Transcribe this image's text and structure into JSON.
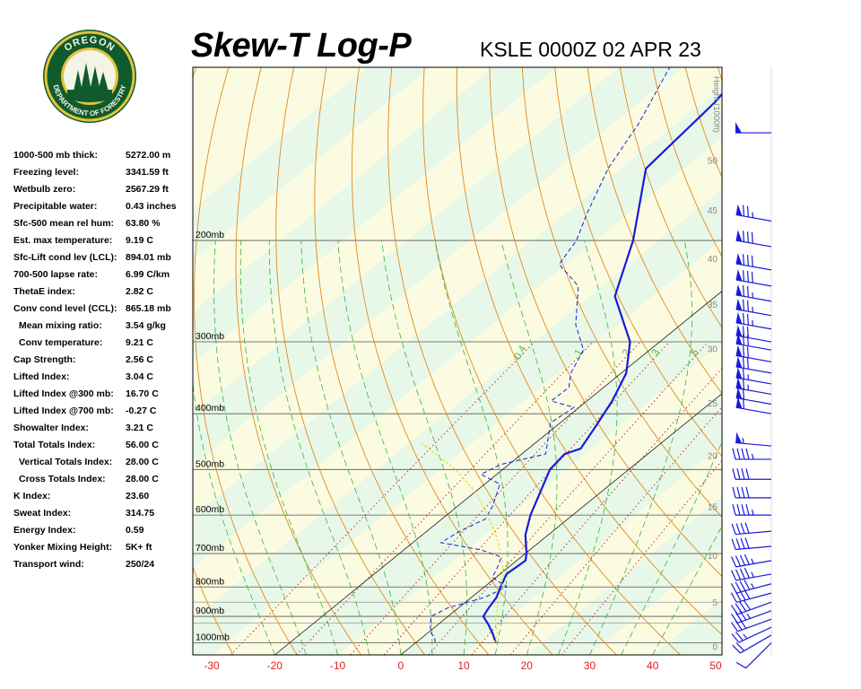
{
  "header": {
    "title": "Skew-T Log-P",
    "station": "KSLE 0000Z 02 APR 23"
  },
  "logo": {
    "top_text": "OREGON",
    "bottom_text": "DEPARTMENT OF FORESTRY"
  },
  "indices": [
    {
      "label": "1000-500 mb thick:",
      "value": "5272.00 m",
      "indent": false
    },
    {
      "label": "Freezing level:",
      "value": "3341.59 ft",
      "indent": false
    },
    {
      "label": "Wetbulb zero:",
      "value": "2567.29 ft",
      "indent": false
    },
    {
      "label": "Precipitable water:",
      "value": "0.43 inches",
      "indent": false
    },
    {
      "label": "Sfc-500 mean rel hum:",
      "value": "63.80 %",
      "indent": false
    },
    {
      "label": "Est. max temperature:",
      "value": "9.19 C",
      "indent": false
    },
    {
      "label": "Sfc-Lift cond lev (LCL):",
      "value": "894.01 mb",
      "indent": false
    },
    {
      "label": "700-500 lapse rate:",
      "value": "6.99 C/km",
      "indent": false
    },
    {
      "label": "ThetaE index:",
      "value": "2.82 C",
      "indent": false
    },
    {
      "label": "Conv cond level (CCL):",
      "value": "865.18 mb",
      "indent": false
    },
    {
      "label": "Mean mixing ratio:",
      "value": "3.54 g/kg",
      "indent": true
    },
    {
      "label": "Conv temperature:",
      "value": "9.21 C",
      "indent": true
    },
    {
      "label": "Cap Strength:",
      "value": "2.56 C",
      "indent": false
    },
    {
      "label": "Lifted Index:",
      "value": "3.04 C",
      "indent": false
    },
    {
      "label": "Lifted Index @300 mb:",
      "value": "16.70 C",
      "indent": false
    },
    {
      "label": "Lifted Index @700 mb:",
      "value": "-0.27 C",
      "indent": false
    },
    {
      "label": "Showalter Index:",
      "value": "3.21 C",
      "indent": false
    },
    {
      "label": "Total Totals Index:",
      "value": "56.00 C",
      "indent": false
    },
    {
      "label": "Vertical Totals Index:",
      "value": "28.00 C",
      "indent": true
    },
    {
      "label": "Cross Totals Index:",
      "value": "28.00 C",
      "indent": true
    },
    {
      "label": "K Index:",
      "value": "23.60",
      "indent": false
    },
    {
      "label": "Sweat Index:",
      "value": "314.75",
      "indent": false
    },
    {
      "label": "Energy Index:",
      "value": "0.59",
      "indent": false
    },
    {
      "label": "Yonker Mixing Height:",
      "value": "5K+ ft",
      "indent": false
    },
    {
      "label": "Transport wind:",
      "value": "250/24",
      "indent": false
    }
  ],
  "chart_data": {
    "type": "line",
    "title": "Skew-T Log-P",
    "xlabel": "",
    "ylabel": "",
    "xlim": [
      -33,
      51
    ],
    "ylim_mb": [
      1050,
      100
    ],
    "x_ticks": [
      -30,
      -20,
      -10,
      0,
      10,
      20,
      30,
      40,
      50
    ],
    "pressure_levels": [
      {
        "mb": 200,
        "label": "200mb"
      },
      {
        "mb": 300,
        "label": "300mb"
      },
      {
        "mb": 400,
        "label": "400mb"
      },
      {
        "mb": 500,
        "label": "500mb"
      },
      {
        "mb": 600,
        "label": "600mb"
      },
      {
        "mb": 700,
        "label": "700mb"
      },
      {
        "mb": 800,
        "label": "800mb"
      },
      {
        "mb": 900,
        "label": "900mb"
      },
      {
        "mb": 1000,
        "label": "1000mb"
      }
    ],
    "height_axis_title": "Height (1000ft)",
    "height_ticks": [
      {
        "kft": 0,
        "mb": 1015
      },
      {
        "kft": 5,
        "mb": 850
      },
      {
        "kft": 10,
        "mb": 705
      },
      {
        "kft": 15,
        "mb": 580
      },
      {
        "kft": 20,
        "mb": 472
      },
      {
        "kft": 25,
        "mb": 383
      },
      {
        "kft": 30,
        "mb": 308
      },
      {
        "kft": 35,
        "mb": 258
      },
      {
        "kft": 40,
        "mb": 215
      },
      {
        "kft": 45,
        "mb": 177
      },
      {
        "kft": 50,
        "mb": 145
      }
    ],
    "mixing_ratio_labels": [
      "0.4",
      "1",
      "2",
      "3",
      "5",
      "8"
    ],
    "series": [
      {
        "kind": "temperature",
        "color": "#1a1adb",
        "points": [
          [
            12.7,
            1000
          ],
          [
            10.5,
            965
          ],
          [
            8,
            930
          ],
          [
            5.6,
            900
          ],
          [
            4.8,
            870
          ],
          [
            4,
            835
          ],
          [
            2.6,
            800
          ],
          [
            1,
            760
          ],
          [
            1.4,
            720
          ],
          [
            0.2,
            700
          ],
          [
            -3.6,
            650
          ],
          [
            -6.7,
            600
          ],
          [
            -12.5,
            500
          ],
          [
            -13.2,
            470
          ],
          [
            -11.7,
            460
          ],
          [
            -13.7,
            420
          ],
          [
            -16,
            380
          ],
          [
            -19.2,
            340
          ],
          [
            -24.7,
            300
          ],
          [
            -36,
            250
          ],
          [
            -44,
            200
          ],
          [
            -56,
            150
          ],
          [
            -58,
            115
          ],
          [
            -60,
            100
          ]
        ]
      },
      {
        "kind": "dewpoint",
        "color": "#1a1adb",
        "points": [
          [
            3.1,
            1000
          ],
          [
            2,
            980
          ],
          [
            0.4,
            960
          ],
          [
            -1.2,
            930
          ],
          [
            -2.7,
            900
          ],
          [
            -1.7,
            870
          ],
          [
            2,
            835
          ],
          [
            3.6,
            800
          ],
          [
            -0.6,
            770
          ],
          [
            -1.5,
            745
          ],
          [
            -3.1,
            710
          ],
          [
            -7.7,
            690
          ],
          [
            -15.5,
            670
          ],
          [
            -14.8,
            640
          ],
          [
            -13.1,
            610
          ],
          [
            -14.4,
            580
          ],
          [
            -17.6,
            530
          ],
          [
            -22.5,
            510
          ],
          [
            -21.3,
            490
          ],
          [
            -16.2,
            470
          ],
          [
            -19,
            440
          ],
          [
            -21.5,
            415
          ],
          [
            -20.8,
            390
          ],
          [
            -25.7,
            380
          ],
          [
            -25.5,
            360
          ],
          [
            -28,
            340
          ],
          [
            -30.5,
            310
          ],
          [
            -36.7,
            280
          ],
          [
            -43.8,
            240
          ],
          [
            -51.1,
            220
          ],
          [
            -53,
            200
          ],
          [
            -56.5,
            180
          ],
          [
            -62,
            150
          ],
          [
            -66,
            125
          ],
          [
            -72,
            100
          ]
        ]
      },
      {
        "kind": "parcel",
        "color": "#dede1e",
        "points": [
          [
            12.5,
            1000
          ],
          [
            11,
            960
          ],
          [
            8.5,
            920
          ],
          [
            7.3,
            894
          ],
          [
            5.2,
            850
          ],
          [
            2.8,
            800
          ],
          [
            -0.2,
            750
          ],
          [
            -3.8,
            700
          ],
          [
            -8.3,
            650
          ],
          [
            -13.5,
            600
          ],
          [
            -19.5,
            550
          ],
          [
            -27.5,
            500
          ],
          [
            -38,
            450
          ]
        ]
      }
    ],
    "winds_legend": "wind barbs along right edge",
    "winds": [
      {
        "mb": 1000,
        "dir": 225,
        "spd": 10
      },
      {
        "mb": 970,
        "dir": 240,
        "spd": 20
      },
      {
        "mb": 940,
        "dir": 245,
        "spd": 25
      },
      {
        "mb": 910,
        "dir": 250,
        "spd": 30
      },
      {
        "mb": 880,
        "dir": 250,
        "spd": 35
      },
      {
        "mb": 850,
        "dir": 250,
        "spd": 40
      },
      {
        "mb": 820,
        "dir": 255,
        "spd": 40
      },
      {
        "mb": 790,
        "dir": 255,
        "spd": 45
      },
      {
        "mb": 760,
        "dir": 260,
        "spd": 45
      },
      {
        "mb": 720,
        "dir": 260,
        "spd": 45
      },
      {
        "mb": 680,
        "dir": 265,
        "spd": 40
      },
      {
        "mb": 640,
        "dir": 265,
        "spd": 40
      },
      {
        "mb": 600,
        "dir": 270,
        "spd": 45
      },
      {
        "mb": 560,
        "dir": 270,
        "spd": 40
      },
      {
        "mb": 520,
        "dir": 270,
        "spd": 40
      },
      {
        "mb": 480,
        "dir": 270,
        "spd": 45
      },
      {
        "mb": 455,
        "dir": 275,
        "spd": 55
      },
      {
        "mb": 400,
        "dir": 280,
        "spd": 60
      },
      {
        "mb": 385,
        "dir": 280,
        "spd": 60
      },
      {
        "mb": 370,
        "dir": 280,
        "spd": 65
      },
      {
        "mb": 355,
        "dir": 280,
        "spd": 65
      },
      {
        "mb": 340,
        "dir": 280,
        "spd": 70
      },
      {
        "mb": 325,
        "dir": 280,
        "spd": 70
      },
      {
        "mb": 310,
        "dir": 280,
        "spd": 70
      },
      {
        "mb": 300,
        "dir": 280,
        "spd": 70
      },
      {
        "mb": 285,
        "dir": 280,
        "spd": 75
      },
      {
        "mb": 270,
        "dir": 280,
        "spd": 75
      },
      {
        "mb": 255,
        "dir": 280,
        "spd": 75
      },
      {
        "mb": 240,
        "dir": 280,
        "spd": 80
      },
      {
        "mb": 225,
        "dir": 280,
        "spd": 80
      },
      {
        "mb": 205,
        "dir": 280,
        "spd": 80
      },
      {
        "mb": 185,
        "dir": 280,
        "spd": 75
      },
      {
        "mb": 130,
        "dir": 270,
        "spd": 50
      }
    ],
    "colors": {
      "isotherm": "#1a1a1a",
      "dry_adiabat": "#e08a1c",
      "moist_adiabat": "#39b239",
      "mixing_ratio": "#c03030",
      "background_alt": "#e8f8e8",
      "background_base": "#fbfbe1",
      "isobar": "#555555",
      "axis_label": "#e02020"
    },
    "grid": true
  }
}
